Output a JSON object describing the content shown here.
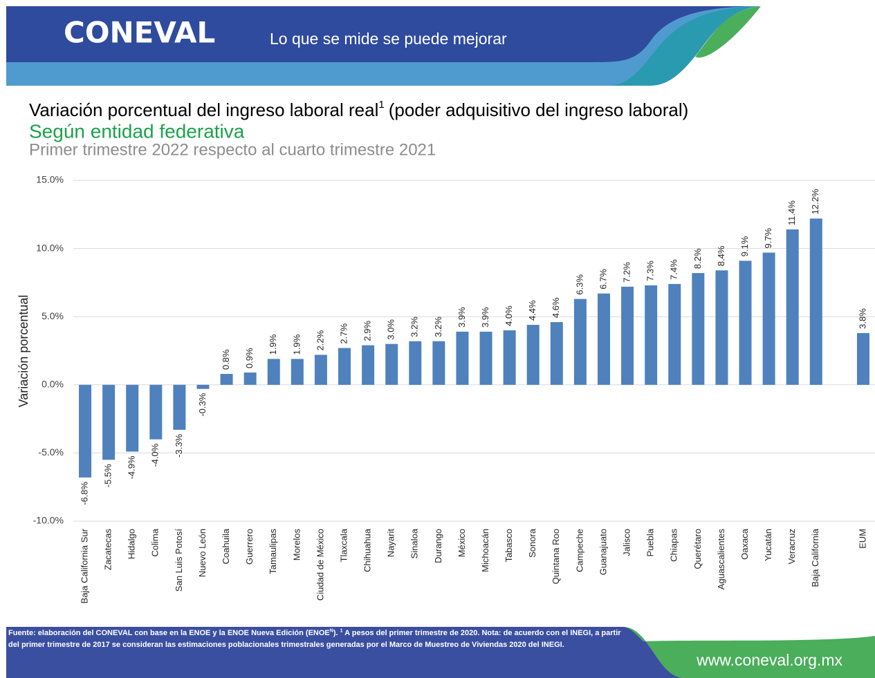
{
  "header": {
    "logo": "CONEVAL",
    "slogan": "Lo que se mide se puede mejorar"
  },
  "chart_data": {
    "type": "bar",
    "title": "Variación porcentual del ingreso laboral real",
    "title_superscript": "1",
    "title_rest": "(poder adquisitivo del ingreso laboral)",
    "subtitle": "Según entidad federativa",
    "subtitle2": "Primer trimestre 2022 respecto al cuarto trimestre 2021",
    "y_label": "Variación porcentual",
    "categories": [
      "Baja California Sur",
      "Zacatecas",
      "Hidalgo",
      "Colima",
      "San Luis Potosí",
      "Nuevo León",
      "Coahuila",
      "Guerrero",
      "Tamaulipas",
      "Morelos",
      "Ciudad de México",
      "Tlaxcala",
      "Chihuahua",
      "Nayarit",
      "Sinaloa",
      "Durango",
      "México",
      "Michoacán",
      "Tabasco",
      "Sonora",
      "Quintana Roo",
      "Campeche",
      "Guanajuato",
      "Jalisco",
      "Puebla",
      "Chiapas",
      "Querétaro",
      "Aguascalientes",
      "Oaxaca",
      "Yucatán",
      "Veracruz",
      "Baja California",
      null,
      "EUM"
    ],
    "values": [
      -6.8,
      -5.5,
      -4.9,
      -4.0,
      -3.3,
      -0.3,
      0.8,
      0.9,
      1.9,
      1.9,
      2.2,
      2.7,
      2.9,
      3.0,
      3.2,
      3.2,
      3.9,
      3.9,
      4.0,
      4.4,
      4.6,
      6.3,
      6.7,
      7.2,
      7.3,
      7.4,
      8.2,
      8.4,
      9.1,
      9.7,
      11.4,
      12.2,
      null,
      3.8
    ],
    "value_labels": [
      "-6.8%",
      "-5.5%",
      "-4.9%",
      "-4.0%",
      "-3.3%",
      "-0.3%",
      "0.8%",
      "0.9%",
      "1.9%",
      "1.9%",
      "2.2%",
      "2.7%",
      "2.9%",
      "3.0%",
      "3.2%",
      "3.2%",
      "3.9%",
      "3.9%",
      "4.0%",
      "4.4%",
      "4.6%",
      "6.3%",
      "6.7%",
      "7.2%",
      "7.3%",
      "7.4%",
      "8.2%",
      "8.4%",
      "9.1%",
      "9.7%",
      "11.4%",
      "12.2%",
      null,
      "3.8%"
    ],
    "color": "#4f81bd",
    "ylim": [
      -10,
      15
    ],
    "yticks": [
      {
        "value": -10,
        "label": "-10.0%"
      },
      {
        "value": -5,
        "label": "-5.0%"
      },
      {
        "value": 0,
        "label": "0.0%"
      },
      {
        "value": 5,
        "label": "5.0%"
      },
      {
        "value": 10,
        "label": "10.0%"
      },
      {
        "value": 15,
        "label": "15.0%"
      }
    ],
    "grid": true
  },
  "footer": {
    "source_a": "Fuente: elaboración del CONEVAL con base en la ENOE y la ENOE Nueva Edición (ENOE",
    "source_sup_a": "N",
    "source_b": "). ",
    "source_sup_b": "1",
    "source_c": " A pesos del primer trimestre de 2020. Nota: de acuerdo con el INEGI, a partir del primer trimestre de 2017 se consideran las estimaciones poblacionales trimestrales generadas por el Marco de Muestreo de Viviendas 2020 del INEGI.",
    "website": "www.coneval.org.mx"
  }
}
